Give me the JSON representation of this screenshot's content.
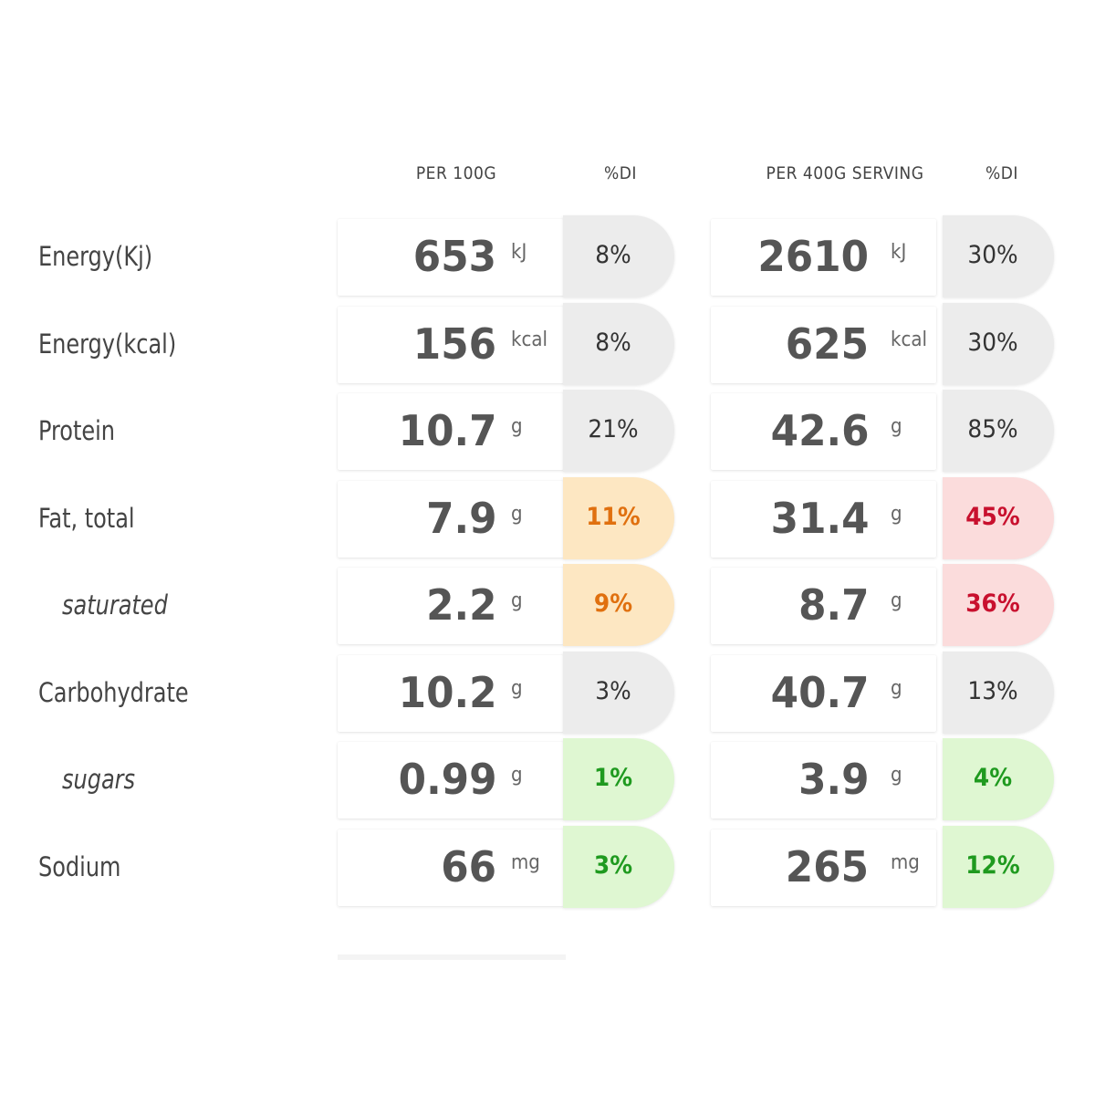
{
  "headers": {
    "per100g": "PER 100G",
    "di1": "%DI",
    "perServing": "PER 400G SERVING",
    "di2": "%DI"
  },
  "rows": [
    {
      "label": "Energy(Kj)",
      "sub": false,
      "v100": "653",
      "unit": "kJ",
      "di100": "8%",
      "vServ": "2610",
      "diServ": "30%",
      "c100": "gray",
      "cServ": "gray"
    },
    {
      "label": "Energy(kcal)",
      "sub": false,
      "v100": "156",
      "unit": "kcal",
      "di100": "8%",
      "vServ": "625",
      "diServ": "30%",
      "c100": "gray",
      "cServ": "gray"
    },
    {
      "label": "Protein",
      "sub": false,
      "v100": "10.7",
      "unit": "g",
      "di100": "21%",
      "vServ": "42.6",
      "diServ": "85%",
      "c100": "gray",
      "cServ": "gray"
    },
    {
      "label": "Fat, total",
      "sub": false,
      "v100": "7.9",
      "unit": "g",
      "di100": "11%",
      "vServ": "31.4",
      "diServ": "45%",
      "c100": "orange",
      "cServ": "red"
    },
    {
      "label": "saturated",
      "sub": true,
      "v100": "2.2",
      "unit": "g",
      "di100": "9%",
      "vServ": "8.7",
      "diServ": "36%",
      "c100": "orange",
      "cServ": "red"
    },
    {
      "label": "Carbohydrate",
      "sub": false,
      "v100": "10.2",
      "unit": "g",
      "di100": "3%",
      "vServ": "40.7",
      "diServ": "13%",
      "c100": "gray",
      "cServ": "gray"
    },
    {
      "label": "sugars",
      "sub": true,
      "v100": "0.99",
      "unit": "g",
      "di100": "1%",
      "vServ": "3.9",
      "diServ": "4%",
      "c100": "green",
      "cServ": "green"
    },
    {
      "label": "Sodium",
      "sub": false,
      "v100": "66",
      "unit": "mg",
      "di100": "3%",
      "vServ": "265",
      "diServ": "12%",
      "c100": "green",
      "cServ": "green"
    }
  ],
  "colors": {
    "gray": "#ececec",
    "orange": "#fde7c2",
    "red": "#fbdcdc",
    "green": "#dff7d2"
  }
}
